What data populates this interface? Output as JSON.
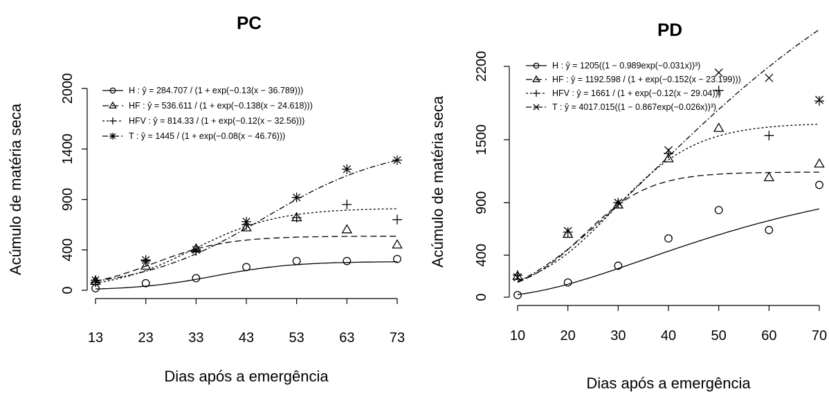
{
  "chart_data": [
    {
      "type": "scatter",
      "title": "PC",
      "xlabel": "Dias após a emergência",
      "ylabel": "Acúmulo de matéria seca",
      "x_ticks": [
        13,
        23,
        33,
        43,
        53,
        63,
        73
      ],
      "y_ticks": [
        0,
        400,
        900,
        1400,
        2000
      ],
      "xlim": [
        13,
        73
      ],
      "ylim": [
        0,
        2000
      ],
      "legend_position": "top-left",
      "series": [
        {
          "key": "H",
          "marker": "circle",
          "line": "solid",
          "legend": "H : ŷ = 284.707 / (1 + exp(−0.13(x − 36.789)))",
          "x": [
            13,
            23,
            33,
            43,
            53,
            63,
            73
          ],
          "y": [
            20,
            70,
            120,
            230,
            290,
            290,
            310
          ],
          "fit": {
            "model": "logistic",
            "a": 284.707,
            "b": 0.13,
            "c": 36.789
          }
        },
        {
          "key": "HF",
          "marker": "triangle",
          "line": "dashed",
          "legend": "HF : ŷ = 536.611 / (1 + exp(−0.138(x − 24.618)))",
          "x": [
            13,
            23,
            33,
            43,
            53,
            63,
            73
          ],
          "y": [
            90,
            240,
            410,
            620,
            720,
            600,
            450
          ],
          "fit": {
            "model": "logistic",
            "a": 536.611,
            "b": 0.138,
            "c": 24.618
          }
        },
        {
          "key": "HFV",
          "marker": "plus",
          "line": "dotted",
          "legend": "HFV : ŷ = 814.33 / (1 + exp(−0.12(x − 32.56)))",
          "x": [
            13,
            23,
            33,
            43,
            53,
            63,
            73
          ],
          "y": [
            80,
            290,
            390,
            650,
            720,
            850,
            700
          ],
          "fit": {
            "model": "logistic",
            "a": 814.33,
            "b": 0.12,
            "c": 32.56
          }
        },
        {
          "key": "T",
          "marker": "star",
          "line": "dashdot",
          "legend": "T : ŷ = 1445 / (1 + exp(−0.08(x − 46.76)))",
          "x": [
            13,
            23,
            33,
            43,
            53,
            63,
            73
          ],
          "y": [
            100,
            300,
            400,
            680,
            920,
            1200,
            1290
          ],
          "fit": {
            "model": "logistic",
            "a": 1445,
            "b": 0.08,
            "c": 46.76
          }
        }
      ]
    },
    {
      "type": "scatter",
      "title": "PD",
      "xlabel": "Dias após a emergência",
      "ylabel": "Acúmulo de matéria seca",
      "x_ticks": [
        10,
        20,
        30,
        40,
        50,
        60,
        70
      ],
      "y_ticks": [
        0,
        400,
        900,
        1500,
        2200
      ],
      "xlim": [
        10,
        70
      ],
      "ylim": [
        0,
        2200
      ],
      "legend_position": "top-left",
      "series": [
        {
          "key": "H",
          "marker": "circle",
          "line": "solid",
          "legend": "H : ŷ = 1205((1 − 0.989exp(−0.031x))³)",
          "x": [
            10,
            20,
            30,
            40,
            50,
            60,
            70
          ],
          "y": [
            20,
            140,
            300,
            560,
            830,
            640,
            1070
          ],
          "fit": {
            "model": "vonbert",
            "a": 1205,
            "b": 0.989,
            "c": 0.031
          }
        },
        {
          "key": "HF",
          "marker": "triangle",
          "line": "dashed",
          "legend": "HF : ŷ = 1192.598 / (1 + exp(−0.152(x − 23.199)))",
          "x": [
            10,
            20,
            30,
            40,
            50,
            60,
            70
          ],
          "y": [
            200,
            600,
            880,
            1320,
            1610,
            1140,
            1270
          ],
          "fit": {
            "model": "logistic",
            "a": 1192.598,
            "b": 0.152,
            "c": 23.199
          }
        },
        {
          "key": "HFV",
          "marker": "plus",
          "line": "dotted",
          "legend": "HFV : ŷ = 1661 / (1 + exp(−0.12(x − 29.04)))",
          "x": [
            10,
            20,
            30,
            40,
            50,
            60,
            70
          ],
          "y": [
            210,
            620,
            900,
            1370,
            1970,
            1540,
            1870
          ],
          "fit": {
            "model": "logistic",
            "a": 1661,
            "b": 0.12,
            "c": 29.04
          }
        },
        {
          "key": "T",
          "marker": "cross",
          "line": "dashdot",
          "legend": "T : ŷ = 4017.015((1 − 0.867exp(−0.026x))³)",
          "x": [
            10,
            20,
            30,
            40,
            50,
            60,
            70
          ],
          "y": [
            190,
            630,
            900,
            1400,
            2140,
            2090,
            1880
          ],
          "fit": {
            "model": "vonbert",
            "a": 4017.015,
            "b": 0.867,
            "c": 0.026
          }
        }
      ]
    }
  ]
}
